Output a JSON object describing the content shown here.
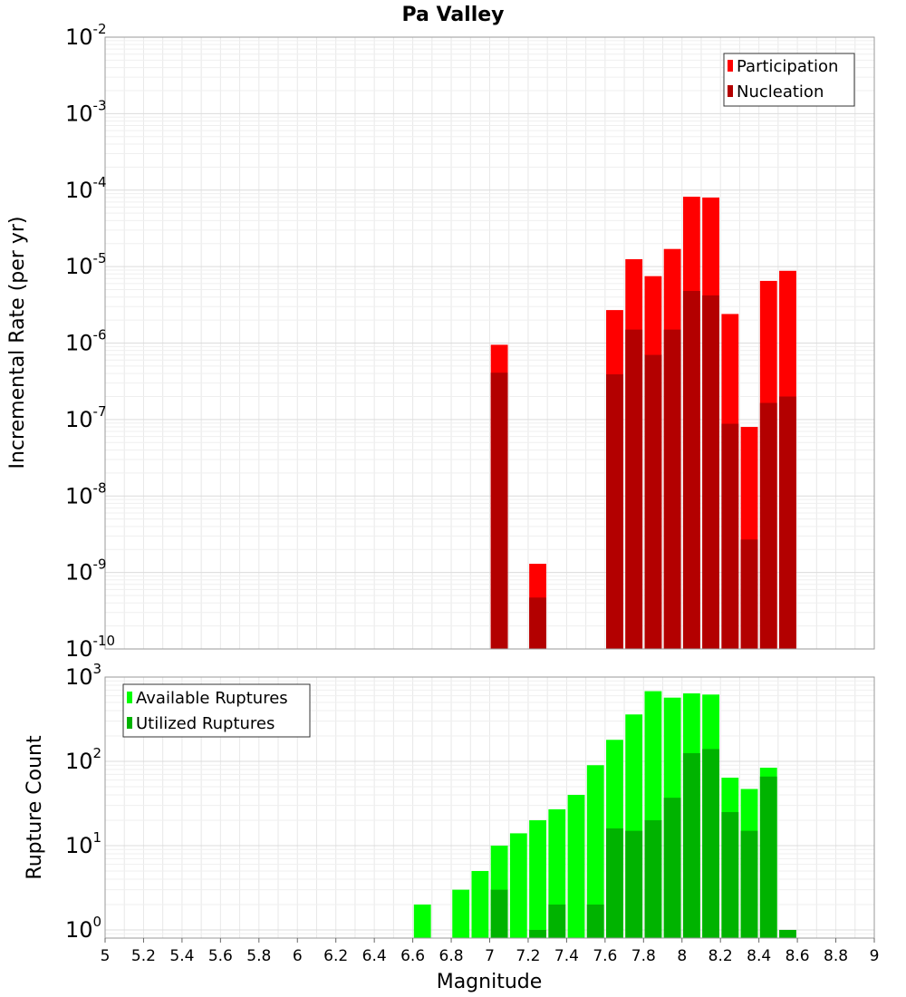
{
  "chart_data": [
    {
      "type": "bar",
      "title": "Pa Valley",
      "ylabel": "Incremental Rate (per yr)",
      "yscale": "log",
      "ylim": [
        1e-10,
        0.01
      ],
      "xlim": [
        5,
        9
      ],
      "grid": true,
      "legend_position": "top-right",
      "y_ticks": [
        {
          "base": "10",
          "exp": "-10"
        },
        {
          "base": "10",
          "exp": "-9"
        },
        {
          "base": "10",
          "exp": "-8"
        },
        {
          "base": "10",
          "exp": "-7"
        },
        {
          "base": "10",
          "exp": "-6"
        },
        {
          "base": "10",
          "exp": "-5"
        },
        {
          "base": "10",
          "exp": "-4"
        },
        {
          "base": "10",
          "exp": "-3"
        },
        {
          "base": "10",
          "exp": "-2"
        }
      ],
      "series": [
        {
          "name": "Participation",
          "color": "#ff0000",
          "points": [
            {
              "x": 7.05,
              "y": 9.5e-07
            },
            {
              "x": 7.25,
              "y": 1.3e-09
            },
            {
              "x": 7.65,
              "y": 2.7e-06
            },
            {
              "x": 7.75,
              "y": 1.25e-05
            },
            {
              "x": 7.85,
              "y": 7.5e-06
            },
            {
              "x": 7.95,
              "y": 1.7e-05
            },
            {
              "x": 8.05,
              "y": 8.2e-05
            },
            {
              "x": 8.15,
              "y": 8e-05
            },
            {
              "x": 8.25,
              "y": 2.4e-06
            },
            {
              "x": 8.35,
              "y": 8e-08
            },
            {
              "x": 8.45,
              "y": 6.5e-06
            },
            {
              "x": 8.55,
              "y": 8.8e-06
            }
          ]
        },
        {
          "name": "Nucleation",
          "color": "#b30000",
          "points": [
            {
              "x": 7.05,
              "y": 4.1e-07
            },
            {
              "x": 7.25,
              "y": 4.7e-10
            },
            {
              "x": 7.65,
              "y": 3.9e-07
            },
            {
              "x": 7.75,
              "y": 1.5e-06
            },
            {
              "x": 7.85,
              "y": 7e-07
            },
            {
              "x": 7.95,
              "y": 1.5e-06
            },
            {
              "x": 8.05,
              "y": 4.8e-06
            },
            {
              "x": 8.15,
              "y": 4.2e-06
            },
            {
              "x": 8.25,
              "y": 8.8e-08
            },
            {
              "x": 8.35,
              "y": 2.7e-09
            },
            {
              "x": 8.45,
              "y": 1.65e-07
            },
            {
              "x": 8.55,
              "y": 2e-07
            }
          ]
        }
      ]
    },
    {
      "type": "bar",
      "ylabel": "Rupture Count",
      "xlabel": "Magnitude",
      "yscale": "log",
      "ylim": [
        0.8,
        1000
      ],
      "xlim": [
        5,
        9
      ],
      "grid": true,
      "legend_position": "top-left",
      "x_ticks": [
        "5",
        "5.2",
        "5.4",
        "5.6",
        "5.8",
        "6",
        "6.2",
        "6.4",
        "6.6",
        "6.8",
        "7",
        "7.2",
        "7.4",
        "7.6",
        "7.8",
        "8",
        "8.2",
        "8.4",
        "8.6",
        "8.8",
        "9"
      ],
      "y_ticks": [
        {
          "base": "10",
          "exp": "0"
        },
        {
          "base": "10",
          "exp": "1"
        },
        {
          "base": "10",
          "exp": "2"
        },
        {
          "base": "10",
          "exp": "3"
        }
      ],
      "series": [
        {
          "name": "Available Ruptures",
          "color": "#00ff00",
          "points": [
            {
              "x": 6.65,
              "y": 2
            },
            {
              "x": 6.85,
              "y": 3
            },
            {
              "x": 6.95,
              "y": 5
            },
            {
              "x": 7.05,
              "y": 10
            },
            {
              "x": 7.15,
              "y": 14
            },
            {
              "x": 7.25,
              "y": 20
            },
            {
              "x": 7.35,
              "y": 27
            },
            {
              "x": 7.45,
              "y": 40
            },
            {
              "x": 7.55,
              "y": 90
            },
            {
              "x": 7.65,
              "y": 180
            },
            {
              "x": 7.75,
              "y": 360
            },
            {
              "x": 7.85,
              "y": 680
            },
            {
              "x": 7.95,
              "y": 570
            },
            {
              "x": 8.05,
              "y": 640
            },
            {
              "x": 8.15,
              "y": 620
            },
            {
              "x": 8.25,
              "y": 64
            },
            {
              "x": 8.35,
              "y": 47
            },
            {
              "x": 8.45,
              "y": 84
            }
          ]
        },
        {
          "name": "Utilized Ruptures",
          "color": "#00b300",
          "points": [
            {
              "x": 7.05,
              "y": 3
            },
            {
              "x": 7.25,
              "y": 1
            },
            {
              "x": 7.35,
              "y": 2
            },
            {
              "x": 7.55,
              "y": 2
            },
            {
              "x": 7.65,
              "y": 16
            },
            {
              "x": 7.75,
              "y": 15
            },
            {
              "x": 7.85,
              "y": 20
            },
            {
              "x": 7.95,
              "y": 37
            },
            {
              "x": 8.05,
              "y": 125
            },
            {
              "x": 8.15,
              "y": 140
            },
            {
              "x": 8.25,
              "y": 25
            },
            {
              "x": 8.35,
              "y": 15
            },
            {
              "x": 8.45,
              "y": 66
            },
            {
              "x": 8.55,
              "y": 1
            }
          ]
        }
      ]
    }
  ]
}
